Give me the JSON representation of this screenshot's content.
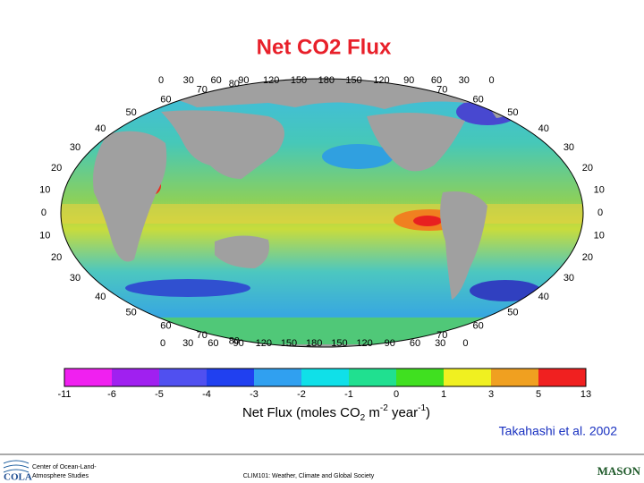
{
  "title": "Net CO2 Flux",
  "map": {
    "top_lon_labels": [
      0,
      30,
      60,
      90,
      120,
      150,
      180,
      150,
      120,
      90,
      60,
      30,
      0
    ],
    "bottom_lon_labels": [
      0,
      30,
      60,
      90,
      120,
      150,
      180,
      150,
      120,
      90,
      60,
      30,
      0
    ],
    "left_lat_labels": [
      80,
      70,
      60,
      50,
      40,
      30,
      20,
      10,
      0,
      10,
      20,
      30,
      40,
      50,
      60,
      70,
      80
    ],
    "right_lat_labels": [
      70,
      60,
      50,
      40,
      30,
      20,
      10,
      0,
      10,
      20,
      30,
      40,
      50,
      60,
      70
    ]
  },
  "colorbar": {
    "ticks": [
      -11,
      -6,
      -5,
      -4,
      -3,
      -2,
      -1,
      0,
      1,
      3,
      5,
      13
    ],
    "label": {
      "start": "Net Flux (moles CO",
      "sub": "2",
      "mid": " m",
      "sup1": "-2",
      "mid2": " year",
      "sup2": "-1",
      "end": ")"
    }
  },
  "citation": "Takahashi et al. 2002",
  "footer": {
    "org_line1": "Center of Ocean-Land-",
    "org_line2": "Atmosphere Studies",
    "org_logo": "COLA",
    "course": "CLIM101: Weather, Climate and Global Society",
    "university": "MASON"
  }
}
